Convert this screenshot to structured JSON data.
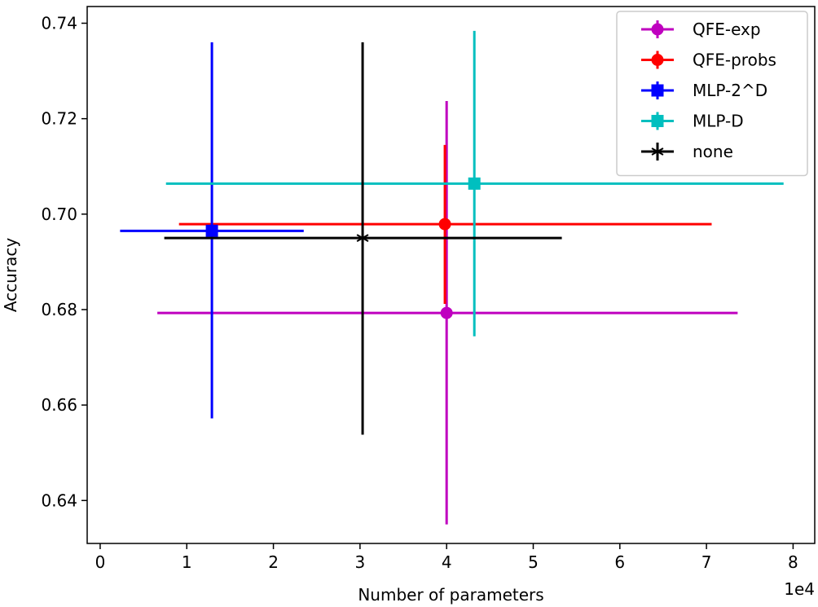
{
  "chart_data": {
    "type": "scatter",
    "xlabel": "Number of parameters",
    "ylabel": "Accuracy",
    "x_offset_label": "1e4",
    "xlim": [
      -0.15,
      8.25
    ],
    "ylim": [
      0.631,
      0.7435
    ],
    "x_ticks": [
      0,
      1,
      2,
      3,
      4,
      5,
      6,
      7,
      8
    ],
    "y_ticks": [
      0.64,
      0.66,
      0.68,
      0.7,
      0.72,
      0.74
    ],
    "y_tick_labels": [
      "0.64",
      "0.66",
      "0.68",
      "0.70",
      "0.72",
      "0.74"
    ],
    "grid": false,
    "legend_position": "top-right",
    "series": [
      {
        "name": "QFE-exp",
        "color": "#bf00bf",
        "marker": "circle",
        "x": 4.0,
        "y": 0.6793,
        "xerr_low": 0.66,
        "xerr_high": 7.36,
        "yerr_low": 0.635,
        "yerr_high": 0.7237
      },
      {
        "name": "QFE-probs",
        "color": "#ff0000",
        "marker": "circle",
        "x": 3.98,
        "y": 0.6979,
        "xerr_low": 0.91,
        "xerr_high": 7.06,
        "yerr_low": 0.6812,
        "yerr_high": 0.7145
      },
      {
        "name": "MLP-2^D",
        "color": "#0000ff",
        "marker": "square",
        "x": 1.29,
        "y": 0.6965,
        "xerr_low": 0.23,
        "xerr_high": 2.35,
        "yerr_low": 0.6572,
        "yerr_high": 0.736
      },
      {
        "name": "MLP-D",
        "color": "#00bfbf",
        "marker": "square",
        "x": 4.32,
        "y": 0.7064,
        "xerr_low": 0.76,
        "xerr_high": 7.89,
        "yerr_low": 0.6744,
        "yerr_high": 0.7384
      },
      {
        "name": "none",
        "color": "#000000",
        "marker": "star",
        "x": 3.03,
        "y": 0.695,
        "xerr_low": 0.74,
        "xerr_high": 5.33,
        "yerr_low": 0.6538,
        "yerr_high": 0.736
      }
    ]
  }
}
